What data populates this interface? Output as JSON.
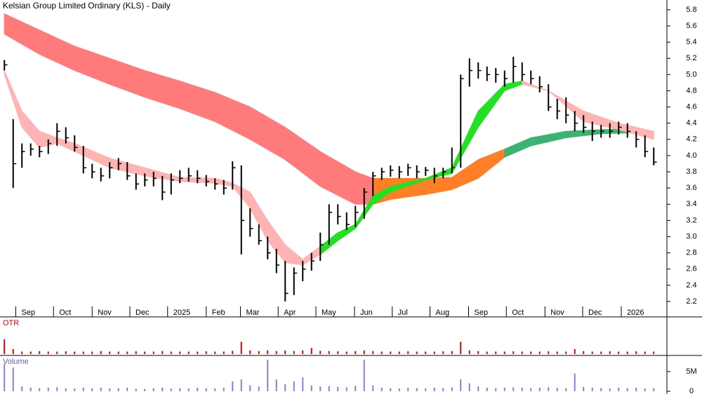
{
  "chart_data": [
    {
      "type": "ohlc",
      "title": "Kelsian Group Limited Ordinary (KLS) - Daily",
      "color": "#000000",
      "x": [
        0,
        1,
        2,
        3,
        4,
        5,
        6,
        7,
        8,
        9,
        10,
        11,
        12,
        13,
        14,
        15,
        16,
        17,
        18,
        19,
        20,
        21,
        22,
        23,
        24,
        25,
        26,
        27,
        28,
        29,
        30,
        31,
        32,
        33,
        34,
        35,
        36,
        37,
        38,
        39,
        40,
        41,
        42,
        43,
        44,
        45,
        46,
        47,
        48,
        49,
        50,
        51,
        52,
        53,
        54,
        55,
        56,
        57,
        58,
        59,
        60,
        61,
        62,
        63,
        64,
        65,
        66,
        67,
        68,
        69,
        70,
        71,
        72,
        73,
        74
      ],
      "high": [
        5.18,
        4.45,
        4.15,
        4.15,
        4.12,
        4.2,
        4.4,
        4.35,
        4.25,
        4.12,
        3.9,
        3.85,
        3.92,
        3.97,
        3.92,
        3.78,
        3.78,
        3.8,
        3.75,
        3.78,
        3.82,
        3.85,
        3.82,
        3.76,
        3.72,
        3.7,
        3.93,
        3.88,
        3.35,
        3.15,
        3.0,
        2.85,
        2.7,
        2.62,
        2.7,
        2.8,
        3.05,
        3.4,
        3.4,
        3.3,
        3.38,
        3.6,
        3.8,
        3.85,
        3.88,
        3.87,
        3.9,
        3.88,
        3.86,
        3.85,
        3.85,
        4.1,
        5.0,
        5.2,
        5.15,
        5.1,
        5.08,
        5.05,
        5.22,
        5.15,
        5.05,
        4.98,
        4.88,
        4.7,
        4.72,
        4.55,
        4.5,
        4.42,
        4.38,
        4.4,
        4.42,
        4.4,
        4.3,
        4.25,
        4.1
      ],
      "low": [
        5.05,
        3.6,
        3.85,
        4.0,
        3.98,
        4.02,
        4.12,
        4.15,
        4.05,
        3.78,
        3.72,
        3.68,
        3.72,
        3.82,
        3.7,
        3.58,
        3.62,
        3.62,
        3.45,
        3.52,
        3.66,
        3.68,
        3.66,
        3.62,
        3.58,
        3.52,
        3.58,
        2.78,
        3.0,
        2.9,
        2.72,
        2.55,
        2.2,
        2.28,
        2.45,
        2.58,
        2.7,
        2.9,
        3.15,
        3.08,
        3.12,
        3.22,
        3.5,
        3.7,
        3.74,
        3.72,
        3.75,
        3.72,
        3.75,
        3.66,
        3.72,
        3.78,
        3.85,
        4.85,
        4.95,
        4.92,
        4.9,
        4.85,
        4.9,
        4.92,
        4.88,
        4.78,
        4.55,
        4.45,
        4.4,
        4.3,
        4.28,
        4.18,
        4.22,
        4.22,
        4.26,
        4.22,
        4.1,
        3.98,
        3.88
      ],
      "close": [
        5.12,
        3.9,
        4.05,
        4.08,
        4.05,
        4.15,
        4.3,
        4.22,
        4.1,
        3.85,
        3.8,
        3.75,
        3.85,
        3.9,
        3.75,
        3.65,
        3.7,
        3.72,
        3.55,
        3.7,
        3.72,
        3.75,
        3.72,
        3.68,
        3.65,
        3.6,
        3.85,
        3.2,
        3.1,
        2.95,
        2.8,
        2.65,
        2.3,
        2.55,
        2.6,
        2.7,
        2.9,
        3.3,
        3.25,
        3.15,
        3.3,
        3.55,
        3.75,
        3.8,
        3.82,
        3.8,
        3.85,
        3.8,
        3.82,
        3.75,
        3.8,
        3.85,
        4.95,
        5.05,
        5.05,
        5.0,
        5.0,
        4.95,
        5.1,
        5.0,
        4.95,
        4.85,
        4.6,
        4.55,
        4.5,
        4.4,
        4.35,
        4.3,
        4.3,
        4.3,
        4.35,
        4.3,
        4.2,
        4.05,
        3.92
      ],
      "bands": [
        {
          "color": "#ff7a7a",
          "x": [
            0,
            4,
            8,
            12,
            16,
            20,
            24,
            28,
            32,
            36,
            40,
            42
          ],
          "upper": [
            5.75,
            5.55,
            5.35,
            5.2,
            5.05,
            4.92,
            4.78,
            4.6,
            4.35,
            4.05,
            3.8,
            3.72
          ],
          "lower": [
            5.5,
            5.25,
            5.05,
            4.88,
            4.72,
            4.58,
            4.42,
            4.2,
            3.95,
            3.62,
            3.4,
            3.4
          ]
        },
        {
          "color": "#ff7f27",
          "x": [
            42,
            44,
            48,
            51,
            54,
            57
          ],
          "upper": [
            3.72,
            3.72,
            3.72,
            3.73,
            3.95,
            4.08
          ],
          "lower": [
            3.4,
            3.46,
            3.52,
            3.58,
            3.72,
            3.98
          ]
        },
        {
          "color": "#3cb371",
          "x": [
            57,
            60,
            64,
            68,
            71,
            74
          ],
          "upper": [
            4.08,
            4.22,
            4.3,
            4.32,
            4.33,
            4.3
          ],
          "lower": [
            3.98,
            4.12,
            4.22,
            4.27,
            4.28,
            4.26
          ]
        },
        {
          "color": "#ffb3b3",
          "x": [
            0,
            2,
            4,
            6,
            8,
            12,
            16,
            20,
            24,
            26,
            28,
            30,
            32,
            34,
            36
          ],
          "upper": [
            5.05,
            4.55,
            4.3,
            4.22,
            4.15,
            3.97,
            3.85,
            3.73,
            3.72,
            3.66,
            3.55,
            3.2,
            2.9,
            2.72,
            2.88
          ],
          "lower": [
            5.0,
            4.35,
            4.1,
            4.15,
            4.05,
            3.85,
            3.75,
            3.68,
            3.66,
            3.62,
            3.35,
            2.95,
            2.68,
            2.65,
            2.78
          ]
        },
        {
          "color": "#22e022",
          "x": [
            36,
            38,
            40,
            42,
            44,
            48,
            51,
            54,
            57,
            59
          ],
          "upper": [
            2.88,
            3.05,
            3.15,
            3.5,
            3.62,
            3.72,
            3.85,
            4.55,
            4.88,
            4.92
          ],
          "lower": [
            2.78,
            2.95,
            3.1,
            3.4,
            3.55,
            3.7,
            3.78,
            4.35,
            4.8,
            4.88
          ]
        },
        {
          "color": "#ffb3b3",
          "x": [
            59,
            62,
            66,
            70,
            74
          ],
          "upper": [
            4.92,
            4.8,
            4.55,
            4.4,
            4.3
          ],
          "lower": [
            4.88,
            4.8,
            4.42,
            4.32,
            4.2
          ]
        }
      ],
      "xlim": [
        0,
        80
      ],
      "xticks": [
        {
          "value": 1.8,
          "label": "Sep"
        },
        {
          "value": 6.1,
          "label": "Oct"
        },
        {
          "value": 10.5,
          "label": "Nov"
        },
        {
          "value": 14.8,
          "label": "Dec"
        },
        {
          "value": 19.1,
          "label": "2025"
        },
        {
          "value": 23.5,
          "label": "Feb"
        },
        {
          "value": 27.4,
          "label": "Mar"
        },
        {
          "value": 31.7,
          "label": "Apr"
        },
        {
          "value": 36.0,
          "label": "May"
        },
        {
          "value": 40.4,
          "label": "Jun"
        },
        {
          "value": 44.7,
          "label": "Jul"
        },
        {
          "value": 49.0,
          "label": "Aug"
        },
        {
          "value": 53.4,
          "label": "Sep"
        },
        {
          "value": 57.7,
          "label": "Oct"
        },
        {
          "value": 62.1,
          "label": "Nov"
        },
        {
          "value": 66.4,
          "label": "Dec"
        },
        {
          "value": 70.8,
          "label": "2026"
        }
      ],
      "ylim": [
        2.01,
        5.92
      ],
      "yticks": [
        2.2,
        2.4,
        2.6,
        2.8,
        {
          "value": 3,
          "label": "3.0"
        },
        3.2,
        3.4,
        3.6,
        3.8,
        {
          "value": 4,
          "label": "4.0"
        },
        4.2,
        4.4,
        4.6,
        4.8,
        {
          "value": 5,
          "label": "5.0"
        },
        5.2,
        5.4,
        5.6,
        5.8
      ]
    },
    {
      "type": "bar",
      "title": "OTR",
      "color": "#e00000",
      "x": [
        0,
        1,
        2,
        3,
        4,
        5,
        6,
        7,
        8,
        9,
        10,
        11,
        12,
        13,
        14,
        15,
        16,
        17,
        18,
        19,
        20,
        21,
        22,
        23,
        24,
        25,
        26,
        27,
        28,
        29,
        30,
        31,
        32,
        33,
        34,
        35,
        36,
        37,
        38,
        39,
        40,
        41,
        42,
        43,
        44,
        45,
        46,
        47,
        48,
        49,
        50,
        51,
        52,
        53,
        54,
        55,
        56,
        57,
        58,
        59,
        60,
        61,
        62,
        63,
        64,
        65,
        66,
        67,
        68,
        69,
        70,
        71,
        72,
        73,
        74
      ],
      "values": [
        6,
        2,
        1,
        1,
        1.2,
        1,
        1,
        1.1,
        1,
        1,
        1,
        1.2,
        1,
        1,
        1,
        1.1,
        1,
        1,
        1.2,
        1,
        1,
        1,
        1,
        1.1,
        1,
        1,
        1.3,
        5,
        1.5,
        1.2,
        1.5,
        1.2,
        1.4,
        1.2,
        1.5,
        2.5,
        1.3,
        1.2,
        1.1,
        1,
        1.2,
        1.5,
        1.2,
        1,
        1,
        1,
        1.1,
        1,
        1,
        1,
        1.1,
        1.2,
        5,
        1.5,
        1.2,
        1,
        1,
        1,
        1.1,
        1,
        1,
        1,
        1.1,
        1,
        1,
        2,
        1.2,
        1,
        1,
        1.1,
        1,
        1,
        1.1,
        1,
        1
      ],
      "xlim": [
        0,
        80
      ],
      "ylim": [
        0,
        10
      ]
    },
    {
      "type": "bar",
      "title": "Volume",
      "color": "#8080e0",
      "x": [
        0,
        1,
        2,
        3,
        4,
        5,
        6,
        7,
        8,
        9,
        10,
        11,
        12,
        13,
        14,
        15,
        16,
        17,
        18,
        19,
        20,
        21,
        22,
        23,
        24,
        25,
        26,
        27,
        28,
        29,
        30,
        31,
        32,
        33,
        34,
        35,
        36,
        37,
        38,
        39,
        40,
        41,
        42,
        43,
        44,
        45,
        46,
        47,
        48,
        49,
        50,
        51,
        52,
        53,
        54,
        55,
        56,
        57,
        58,
        59,
        60,
        61,
        62,
        63,
        64,
        65,
        66,
        67,
        68,
        69,
        70,
        71,
        72,
        73,
        74
      ],
      "values": [
        7000000,
        6000000,
        1200000,
        900000,
        800000,
        900000,
        1000000,
        800000,
        700000,
        900000,
        800000,
        900000,
        700000,
        800000,
        900000,
        700000,
        600000,
        800000,
        900000,
        700000,
        800000,
        700000,
        900000,
        800000,
        700000,
        900000,
        2500000,
        3000000,
        1500000,
        1200000,
        8000000,
        3000000,
        1800000,
        2500000,
        3500000,
        1500000,
        1200000,
        1300000,
        1100000,
        1000000,
        1400000,
        8000000,
        1500000,
        900000,
        800000,
        700000,
        900000,
        800000,
        700000,
        900000,
        800000,
        1000000,
        3000000,
        2000000,
        1200000,
        900000,
        800000,
        900000,
        1000000,
        900000,
        800000,
        900000,
        1000000,
        900000,
        800000,
        4500000,
        1100000,
        900000,
        800000,
        700000,
        900000,
        800000,
        900000,
        700000,
        800000
      ],
      "xlim": [
        0,
        80
      ],
      "ylim": [
        -700000,
        9100000
      ],
      "yticks": [
        {
          "value": 0,
          "label": "0"
        },
        {
          "value": 5000000,
          "label": "5M"
        }
      ]
    }
  ]
}
